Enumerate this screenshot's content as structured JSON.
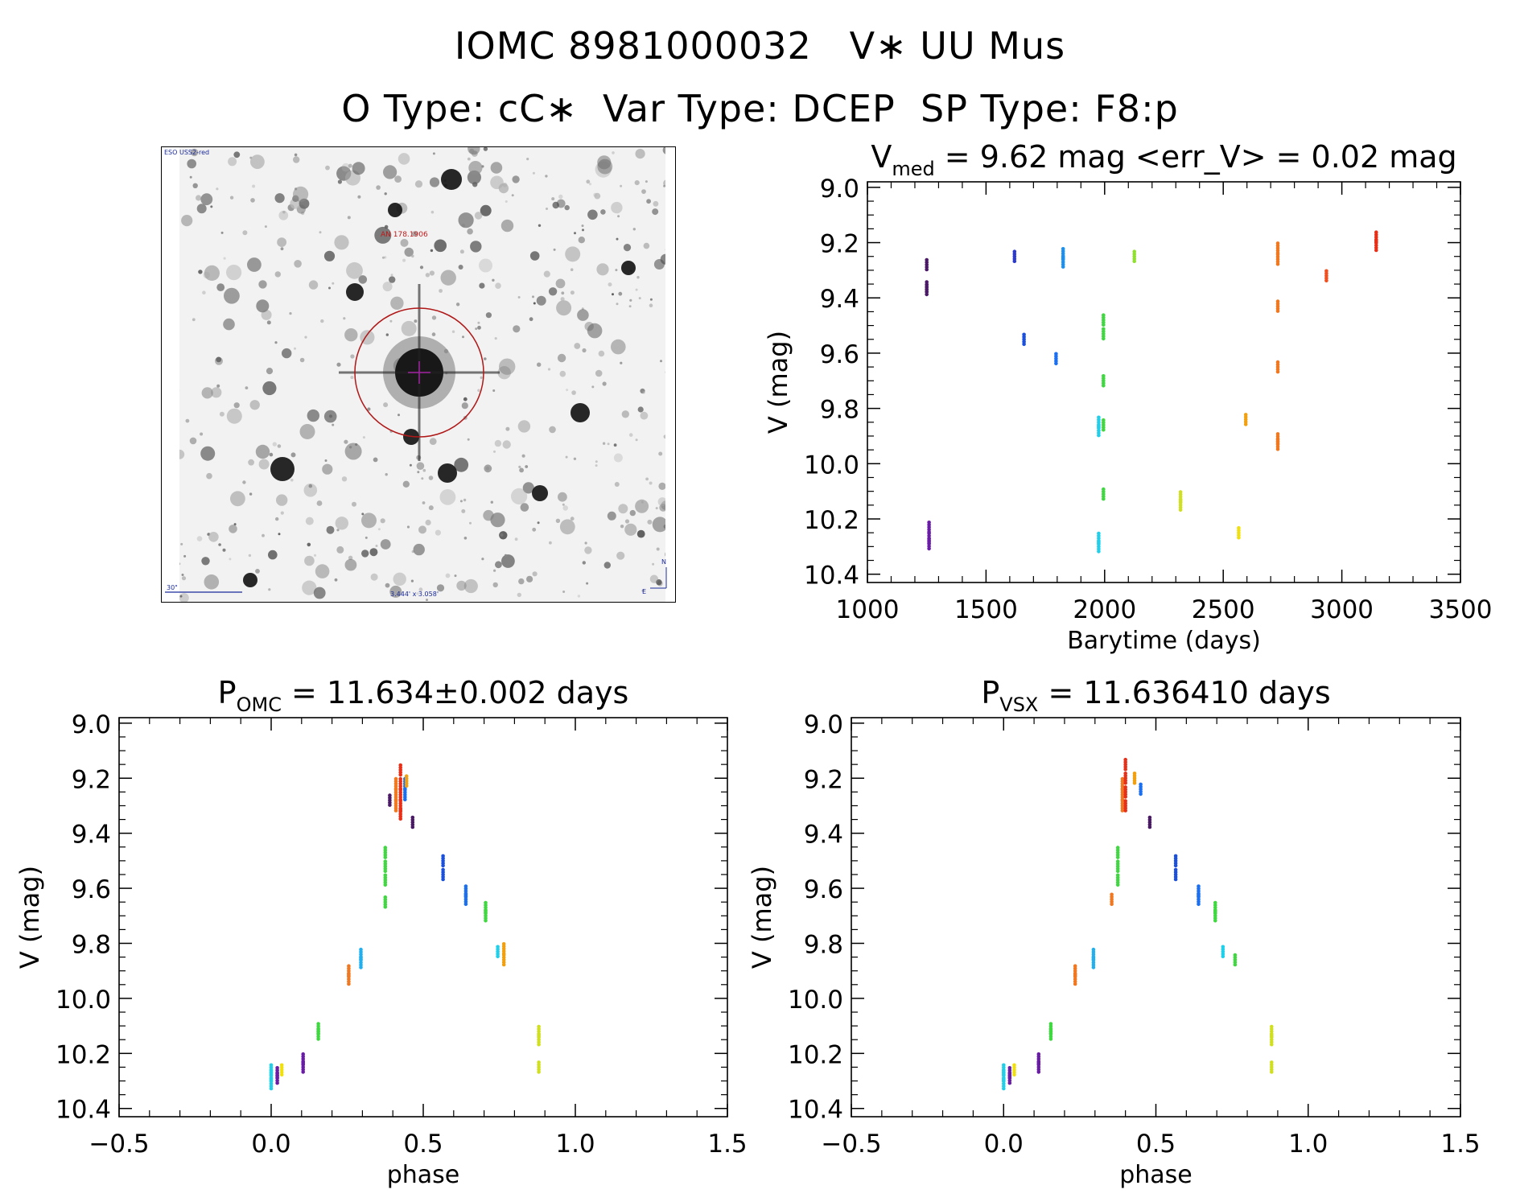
{
  "header": {
    "title_line1": "IOMC 8981000032   V∗ UU Mus",
    "title_line2": "O Type: cC∗  Var Type: DCEP  SP Type: F8:p"
  },
  "finder_chart": {
    "survey_label": "ESO USS2-red",
    "object_label": "AN 178.1906",
    "scale_label": "30\"",
    "fov_label": "3.444' x 3.058'",
    "compass_north": "N",
    "compass_east": "E",
    "colors": {
      "circle": "#b01818",
      "label": "#c01818",
      "text": "#1a2a9a",
      "cross": "#a020a0"
    }
  },
  "chart_data": [
    {
      "type": "scatter",
      "id": "lightcurve",
      "title": {
        "var": "V",
        "sub": "med",
        "rest": " = 9.62 mag <err_V> = 0.02 mag"
      },
      "xlabel": "Barytime (days)",
      "ylabel": "V (mag)",
      "xlim": [
        1000,
        3500
      ],
      "ylim": [
        10.43,
        8.98
      ],
      "xticks": [
        1000,
        1500,
        2000,
        2500,
        3000,
        3500
      ],
      "xtick_labels": [
        "1000",
        "1500",
        "2000",
        "2500",
        "3000",
        "3500"
      ],
      "yticks": [
        9.0,
        9.2,
        9.4,
        9.6,
        9.8,
        10.0,
        10.2,
        10.4
      ],
      "ytick_labels": [
        "9.0",
        "9.2",
        "9.4",
        "9.6",
        "9.8",
        "10.0",
        "10.2",
        "10.4"
      ],
      "groups": [
        {
          "x": 1250,
          "y": [
            9.28,
            9.36,
            9.37
          ],
          "color": "#4b1a66"
        },
        {
          "x": 1260,
          "y": [
            10.23,
            10.27,
            10.29
          ],
          "color": "#6a1ca8"
        },
        {
          "x": 1620,
          "y": [
            9.25
          ],
          "color": "#2a3ad0"
        },
        {
          "x": 1660,
          "y": [
            9.55
          ],
          "color": "#1a50e0"
        },
        {
          "x": 1795,
          "y": [
            9.62
          ],
          "color": "#1a70f0"
        },
        {
          "x": 1825,
          "y": [
            9.24,
            9.27
          ],
          "color": "#1a90f0"
        },
        {
          "x": 1975,
          "y": [
            9.85,
            9.88,
            10.27,
            10.3
          ],
          "color": "#20d0ea"
        },
        {
          "x": 1995,
          "y": [
            9.48,
            9.53,
            9.7,
            9.86,
            10.11
          ],
          "color": "#40d840"
        },
        {
          "x": 2125,
          "y": [
            9.25
          ],
          "color": "#90e030"
        },
        {
          "x": 2320,
          "y": [
            10.12,
            10.15
          ],
          "color": "#d0e020"
        },
        {
          "x": 2565,
          "y": [
            10.25
          ],
          "color": "#f0e010"
        },
        {
          "x": 2595,
          "y": [
            9.84
          ],
          "color": "#f0a010"
        },
        {
          "x": 2730,
          "y": [
            9.22,
            9.26,
            9.43,
            9.65,
            9.91,
            9.93
          ],
          "color": "#f07820"
        },
        {
          "x": 2935,
          "y": [
            9.32
          ],
          "color": "#f05020"
        },
        {
          "x": 3145,
          "y": [
            9.18,
            9.21
          ],
          "color": "#e83018"
        }
      ]
    },
    {
      "type": "scatter",
      "id": "phase_omc",
      "title": {
        "var": "P",
        "sub": "OMC",
        "rest": " = 11.634±0.002 days"
      },
      "xlabel": "phase",
      "ylabel": "V (mag)",
      "xlim": [
        -0.5,
        1.5
      ],
      "ylim": [
        10.43,
        8.98
      ],
      "xticks": [
        -0.5,
        0.0,
        0.5,
        1.0,
        1.5
      ],
      "xtick_labels": [
        "−0.5",
        "0.0",
        "0.5",
        "1.0",
        "1.5"
      ],
      "yticks": [
        9.0,
        9.2,
        9.4,
        9.6,
        9.8,
        10.0,
        10.2,
        10.4
      ],
      "ytick_labels": [
        "9.0",
        "9.2",
        "9.4",
        "9.6",
        "9.8",
        "10.0",
        "10.2",
        "10.4"
      ],
      "groups": [
        {
          "x": 0.0,
          "y": [
            10.26,
            10.28,
            10.31
          ],
          "color": "#20d0ea"
        },
        {
          "x": 0.02,
          "y": [
            10.27,
            10.29
          ],
          "color": "#6a1ca8"
        },
        {
          "x": 0.035,
          "y": [
            10.26
          ],
          "color": "#f0e010"
        },
        {
          "x": 0.105,
          "y": [
            10.22,
            10.25
          ],
          "color": "#6a1ca8"
        },
        {
          "x": 0.155,
          "y": [
            10.11,
            10.13
          ],
          "color": "#40d840"
        },
        {
          "x": 0.255,
          "y": [
            9.9,
            9.93
          ],
          "color": "#f07820"
        },
        {
          "x": 0.295,
          "y": [
            9.84,
            9.87
          ],
          "color": "#20b0f0"
        },
        {
          "x": 0.375,
          "y": [
            9.47,
            9.52,
            9.57,
            9.65
          ],
          "color": "#40d840"
        },
        {
          "x": 0.39,
          "y": [
            9.28
          ],
          "color": "#4b1a66"
        },
        {
          "x": 0.41,
          "y": [
            9.22,
            9.26,
            9.3
          ],
          "color": "#f07820"
        },
        {
          "x": 0.425,
          "y": [
            9.17,
            9.22,
            9.26,
            9.3,
            9.33
          ],
          "color": "#e83018"
        },
        {
          "x": 0.44,
          "y": [
            9.22,
            9.26
          ],
          "color": "#1a70f0"
        },
        {
          "x": 0.445,
          "y": [
            9.21
          ],
          "color": "#f0a010"
        },
        {
          "x": 0.465,
          "y": [
            9.36
          ],
          "color": "#4b1a66"
        },
        {
          "x": 0.565,
          "y": [
            9.5,
            9.55
          ],
          "color": "#1a50e0"
        },
        {
          "x": 0.64,
          "y": [
            9.61,
            9.64
          ],
          "color": "#1a70f0"
        },
        {
          "x": 0.705,
          "y": [
            9.67,
            9.7
          ],
          "color": "#40d840"
        },
        {
          "x": 0.745,
          "y": [
            9.83
          ],
          "color": "#20d0ea"
        },
        {
          "x": 0.765,
          "y": [
            9.82,
            9.86
          ],
          "color": "#f0a010"
        },
        {
          "x": 0.88,
          "y": [
            10.12,
            10.15,
            10.25
          ],
          "color": "#d0e020"
        }
      ]
    },
    {
      "type": "scatter",
      "id": "phase_vsx",
      "title": {
        "var": "P",
        "sub": "VSX",
        "rest": " = 11.636410 days"
      },
      "xlabel": "phase",
      "ylabel": "V (mag)",
      "xlim": [
        -0.5,
        1.5
      ],
      "ylim": [
        10.43,
        8.98
      ],
      "xticks": [
        -0.5,
        0.0,
        0.5,
        1.0,
        1.5
      ],
      "xtick_labels": [
        "−0.5",
        "0.0",
        "0.5",
        "1.0",
        "1.5"
      ],
      "yticks": [
        9.0,
        9.2,
        9.4,
        9.6,
        9.8,
        10.0,
        10.2,
        10.4
      ],
      "ytick_labels": [
        "9.0",
        "9.2",
        "9.4",
        "9.6",
        "9.8",
        "10.0",
        "10.2",
        "10.4"
      ],
      "groups": [
        {
          "x": 0.0,
          "y": [
            10.26,
            10.28,
            10.31
          ],
          "color": "#20d0ea"
        },
        {
          "x": 0.02,
          "y": [
            10.27,
            10.29
          ],
          "color": "#6a1ca8"
        },
        {
          "x": 0.035,
          "y": [
            10.26
          ],
          "color": "#f0e010"
        },
        {
          "x": 0.115,
          "y": [
            10.22,
            10.25
          ],
          "color": "#6a1ca8"
        },
        {
          "x": 0.155,
          "y": [
            10.11,
            10.13
          ],
          "color": "#40d840"
        },
        {
          "x": 0.235,
          "y": [
            9.9,
            9.93
          ],
          "color": "#f07820"
        },
        {
          "x": 0.295,
          "y": [
            9.84,
            9.87
          ],
          "color": "#20b0f0"
        },
        {
          "x": 0.355,
          "y": [
            9.64
          ],
          "color": "#f07820"
        },
        {
          "x": 0.375,
          "y": [
            9.47,
            9.52,
            9.57
          ],
          "color": "#40d840"
        },
        {
          "x": 0.39,
          "y": [
            9.22,
            9.26,
            9.3
          ],
          "color": "#f07820"
        },
        {
          "x": 0.4,
          "y": [
            9.15,
            9.2,
            9.25,
            9.3
          ],
          "color": "#e83018"
        },
        {
          "x": 0.43,
          "y": [
            9.2
          ],
          "color": "#f0a010"
        },
        {
          "x": 0.45,
          "y": [
            9.24
          ],
          "color": "#1a70f0"
        },
        {
          "x": 0.48,
          "y": [
            9.36
          ],
          "color": "#4b1a66"
        },
        {
          "x": 0.565,
          "y": [
            9.5,
            9.55
          ],
          "color": "#1a50e0"
        },
        {
          "x": 0.64,
          "y": [
            9.61,
            9.64
          ],
          "color": "#1a70f0"
        },
        {
          "x": 0.695,
          "y": [
            9.67,
            9.7
          ],
          "color": "#40d840"
        },
        {
          "x": 0.72,
          "y": [
            9.83
          ],
          "color": "#20d0ea"
        },
        {
          "x": 0.76,
          "y": [
            9.86
          ],
          "color": "#40d840"
        },
        {
          "x": 0.88,
          "y": [
            10.12,
            10.15,
            10.25
          ],
          "color": "#d0e020"
        }
      ]
    }
  ]
}
